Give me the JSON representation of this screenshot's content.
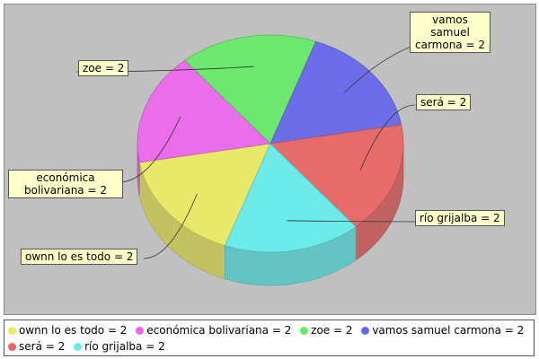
{
  "chart_data": {
    "type": "pie",
    "slices": [
      {
        "label": "ownn lo es todo",
        "value": 2,
        "color": "#ecec64",
        "callout": "ownn lo es todo = 2",
        "legend": "ownn lo es todo = 2"
      },
      {
        "label": "económica bolivariana",
        "value": 2,
        "color": "#ee66ee",
        "callout": "económica bolivariana = 2",
        "legend": "económica bolivariana = 2"
      },
      {
        "label": "zoe",
        "value": 2,
        "color": "#66ea66",
        "callout": "zoe = 2",
        "legend": "zoe = 2"
      },
      {
        "label": "vamos samuel carmona",
        "value": 2,
        "color": "#6666ee",
        "callout": "vamos samuel carmona = 2",
        "legend": "vamos samuel carmona = 2"
      },
      {
        "label": "será",
        "value": 2,
        "color": "#ec6464",
        "callout": "será = 2",
        "legend": "será = 2"
      },
      {
        "label": "río grijalba",
        "value": 2,
        "color": "#66eeee",
        "callout": "río grijalba = 2",
        "legend": "río grijalba = 2"
      }
    ],
    "style": "3d",
    "legend_position": "bottom"
  }
}
